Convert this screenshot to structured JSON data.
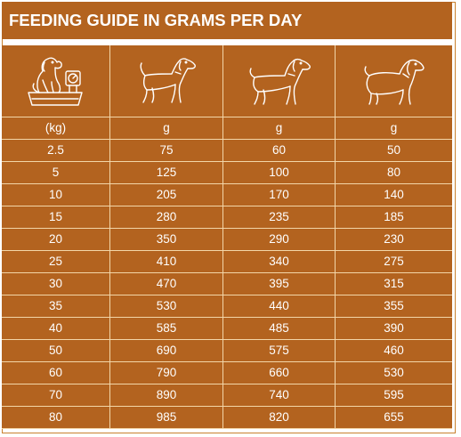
{
  "title": "FEEDING GUIDE IN GRAMS PER DAY",
  "columns": [
    {
      "icon": "dog-on-scale-icon",
      "unit": "(kg)"
    },
    {
      "icon": "young-dog-icon",
      "unit": "g"
    },
    {
      "icon": "adult-dog-icon",
      "unit": "g"
    },
    {
      "icon": "senior-dog-icon",
      "unit": "g"
    }
  ],
  "rows": [
    [
      "2.5",
      "75",
      "60",
      "50"
    ],
    [
      "5",
      "125",
      "100",
      "80"
    ],
    [
      "10",
      "205",
      "170",
      "140"
    ],
    [
      "15",
      "280",
      "235",
      "185"
    ],
    [
      "20",
      "350",
      "290",
      "230"
    ],
    [
      "25",
      "410",
      "340",
      "275"
    ],
    [
      "30",
      "470",
      "395",
      "315"
    ],
    [
      "35",
      "530",
      "440",
      "355"
    ],
    [
      "40",
      "585",
      "485",
      "390"
    ],
    [
      "50",
      "690",
      "575",
      "460"
    ],
    [
      "60",
      "790",
      "660",
      "530"
    ],
    [
      "70",
      "890",
      "740",
      "595"
    ],
    [
      "80",
      "985",
      "820",
      "655"
    ]
  ],
  "colors": {
    "header_bg": "#b3631f",
    "cell_bg": "#b3631f",
    "grid_line": "#f3d6a8",
    "text": "#ffffff"
  }
}
